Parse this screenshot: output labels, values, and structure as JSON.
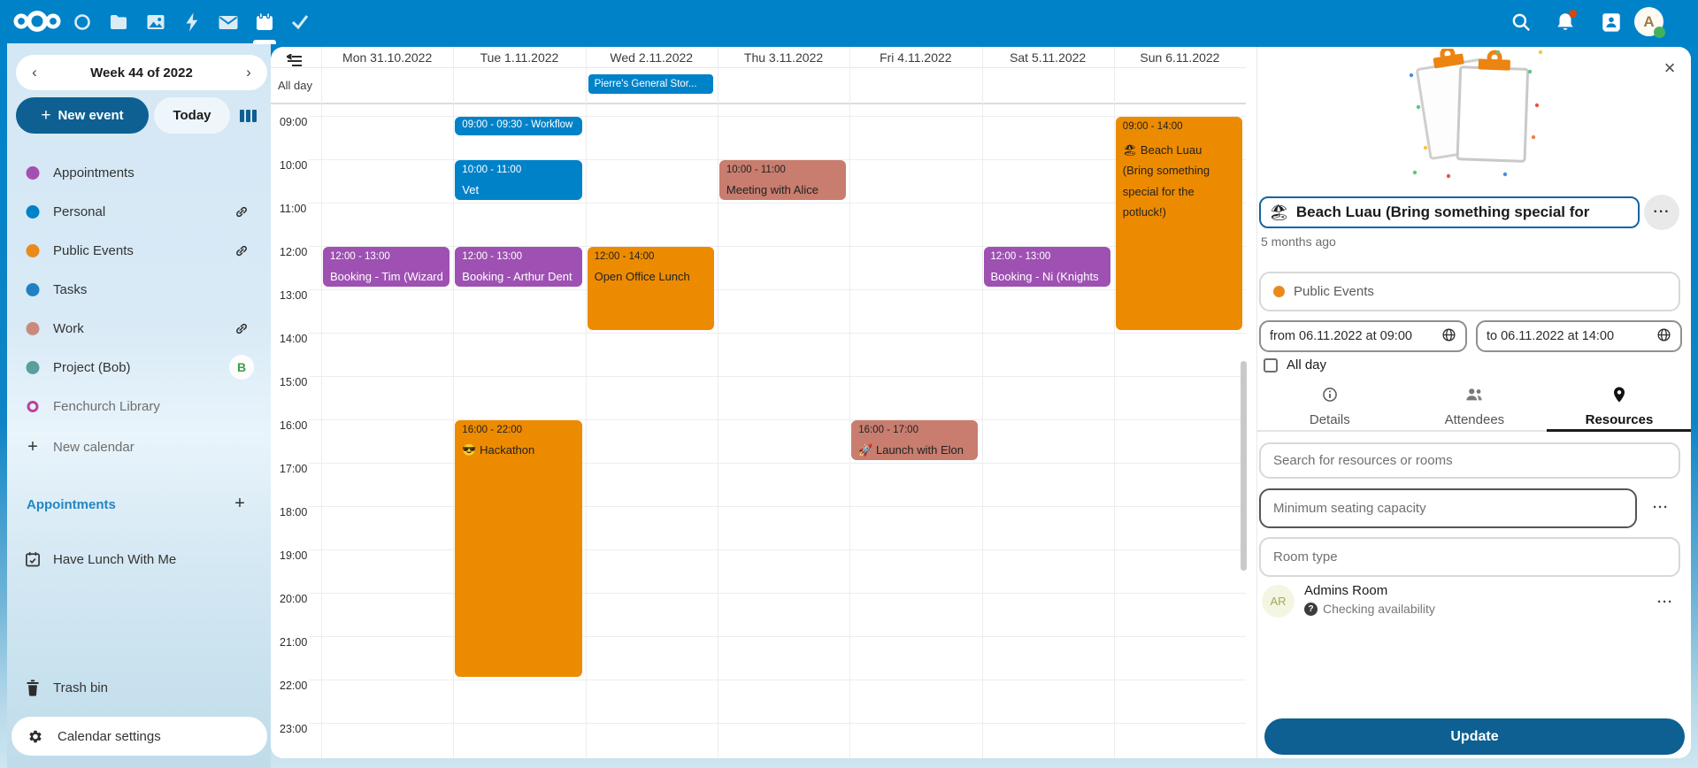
{
  "topbar": {
    "app_icons": [
      "dashboard",
      "files",
      "photos",
      "activity",
      "mail",
      "calendar",
      "tasks"
    ],
    "active_app": "calendar",
    "avatar_letter": "A",
    "colors": {
      "bar": "#0082c9",
      "notification_dot": "#d4490e",
      "status_dot": "#43b15c"
    }
  },
  "sidebar": {
    "week_label": "Week 44 of 2022",
    "new_event_label": "New event",
    "today_label": "Today",
    "calendars": [
      {
        "label": "Appointments",
        "dot_color": "#a450b3",
        "side": "none"
      },
      {
        "label": "Personal",
        "dot_color": "#0082c9",
        "side": "link"
      },
      {
        "label": "Public Events",
        "dot_color": "#ea8a1c",
        "side": "link"
      },
      {
        "label": "Tasks",
        "dot_color": "#2180c4",
        "side": "none"
      },
      {
        "label": "Work",
        "dot_color": "#c98a7d",
        "side": "link"
      },
      {
        "label": "Project (Bob)",
        "dot_color": "#5a9e9e",
        "side": "avatar",
        "avatar_letter": "B"
      },
      {
        "label": "Fenchurch Library",
        "ring_color": "#c03f9d",
        "dim": true,
        "side": "none"
      }
    ],
    "new_calendar_label": "New calendar",
    "appointments_heading": "Appointments",
    "appointment_items": [
      {
        "label": "Have Lunch With Me"
      }
    ],
    "trash_label": "Trash bin",
    "settings_label": "Calendar settings"
  },
  "calendar": {
    "days": [
      "Mon 31.10.2022",
      "Tue 1.11.2022",
      "Wed 2.11.2022",
      "Thu 3.11.2022",
      "Fri 4.11.2022",
      "Sat 5.11.2022",
      "Sun 6.11.2022"
    ],
    "allday_label": "All day",
    "allday_events": [
      {
        "day": 2,
        "title": "Pierre's General Stor...",
        "color": "#0082c9"
      }
    ],
    "hours": [
      "09:00",
      "10:00",
      "11:00",
      "12:00",
      "13:00",
      "14:00",
      "15:00",
      "16:00",
      "17:00",
      "18:00",
      "19:00",
      "20:00",
      "21:00",
      "22:00",
      "23:00"
    ],
    "events": [
      {
        "day": 0,
        "start": 12,
        "end": 13,
        "time_label": "12:00 - 13:00",
        "title": "Booking - Tim (Wizard)",
        "color": "#9e51b2",
        "text": "#ffffff"
      },
      {
        "day": 1,
        "start": 9,
        "end": 9.5,
        "time_label": "09:00 - 09:30 - Workflow",
        "title": "",
        "compact": true,
        "color": "#0082c9",
        "text": "#ffffff"
      },
      {
        "day": 1,
        "start": 10,
        "end": 11,
        "time_label": "10:00 - 11:00",
        "title": "Vet",
        "color": "#0082c9",
        "text": "#ffffff"
      },
      {
        "day": 1,
        "start": 12,
        "end": 13,
        "time_label": "12:00 - 13:00",
        "title": "Booking - Arthur Dent",
        "color": "#9e51b2",
        "text": "#ffffff"
      },
      {
        "day": 1,
        "start": 16,
        "end": 22,
        "time_label": "16:00 - 22:00",
        "title": "😎 Hackathon",
        "color": "#ed8b00",
        "text": "#222222"
      },
      {
        "day": 2,
        "start": 12,
        "end": 14,
        "time_label": "12:00 - 14:00",
        "title": "Open Office Lunch",
        "color": "#ed8b00",
        "text": "#222222"
      },
      {
        "day": 3,
        "start": 10,
        "end": 11,
        "time_label": "10:00 - 11:00",
        "title": "Meeting with Alice",
        "color": "#c87d6e",
        "text": "#222222"
      },
      {
        "day": 4,
        "start": 16,
        "end": 17,
        "time_label": "16:00 - 17:00",
        "title": "🚀 Launch with Elon",
        "color": "#c87d6e",
        "text": "#222222"
      },
      {
        "day": 5,
        "start": 12,
        "end": 13,
        "time_label": "12:00 - 13:00",
        "title": "Booking - Ni (Knights",
        "color": "#9e51b2",
        "text": "#ffffff"
      },
      {
        "day": 6,
        "start": 9,
        "end": 14,
        "time_label": "09:00 - 14:00",
        "title": "🏖 Beach Luau (Bring something special for the potluck!)",
        "wrap": true,
        "color": "#ed8b00",
        "text": "#222222"
      }
    ]
  },
  "editor": {
    "title_emoji": "🏖",
    "title": "Beach Luau (Bring something special for",
    "modified": "5 months ago",
    "calendar_select": "Public Events",
    "calendar_select_dot": "#ea8a1c",
    "from_label": "from 06.11.2022 at 09:00",
    "to_label": "to 06.11.2022 at 14:00",
    "allday_label": "All day",
    "tabs": [
      {
        "label": "Details",
        "icon": "info-icon",
        "active": false
      },
      {
        "label": "Attendees",
        "icon": "people-icon",
        "active": false
      },
      {
        "label": "Resources",
        "icon": "pin-icon",
        "active": true
      }
    ],
    "search_placeholder": "Search for resources or rooms",
    "seating_placeholder": "Minimum seating capacity",
    "room_type_placeholder": "Room type",
    "resource": {
      "initials": "AR",
      "name": "Admins Room",
      "status": "Checking availability"
    },
    "update_label": "Update",
    "menu_dots": "···"
  },
  "colors": {
    "primary": "#0d6091",
    "event_blue": "#0082c9",
    "event_purple": "#9e51b2",
    "event_orange": "#ed8b00",
    "event_rose": "#c87d6e"
  }
}
